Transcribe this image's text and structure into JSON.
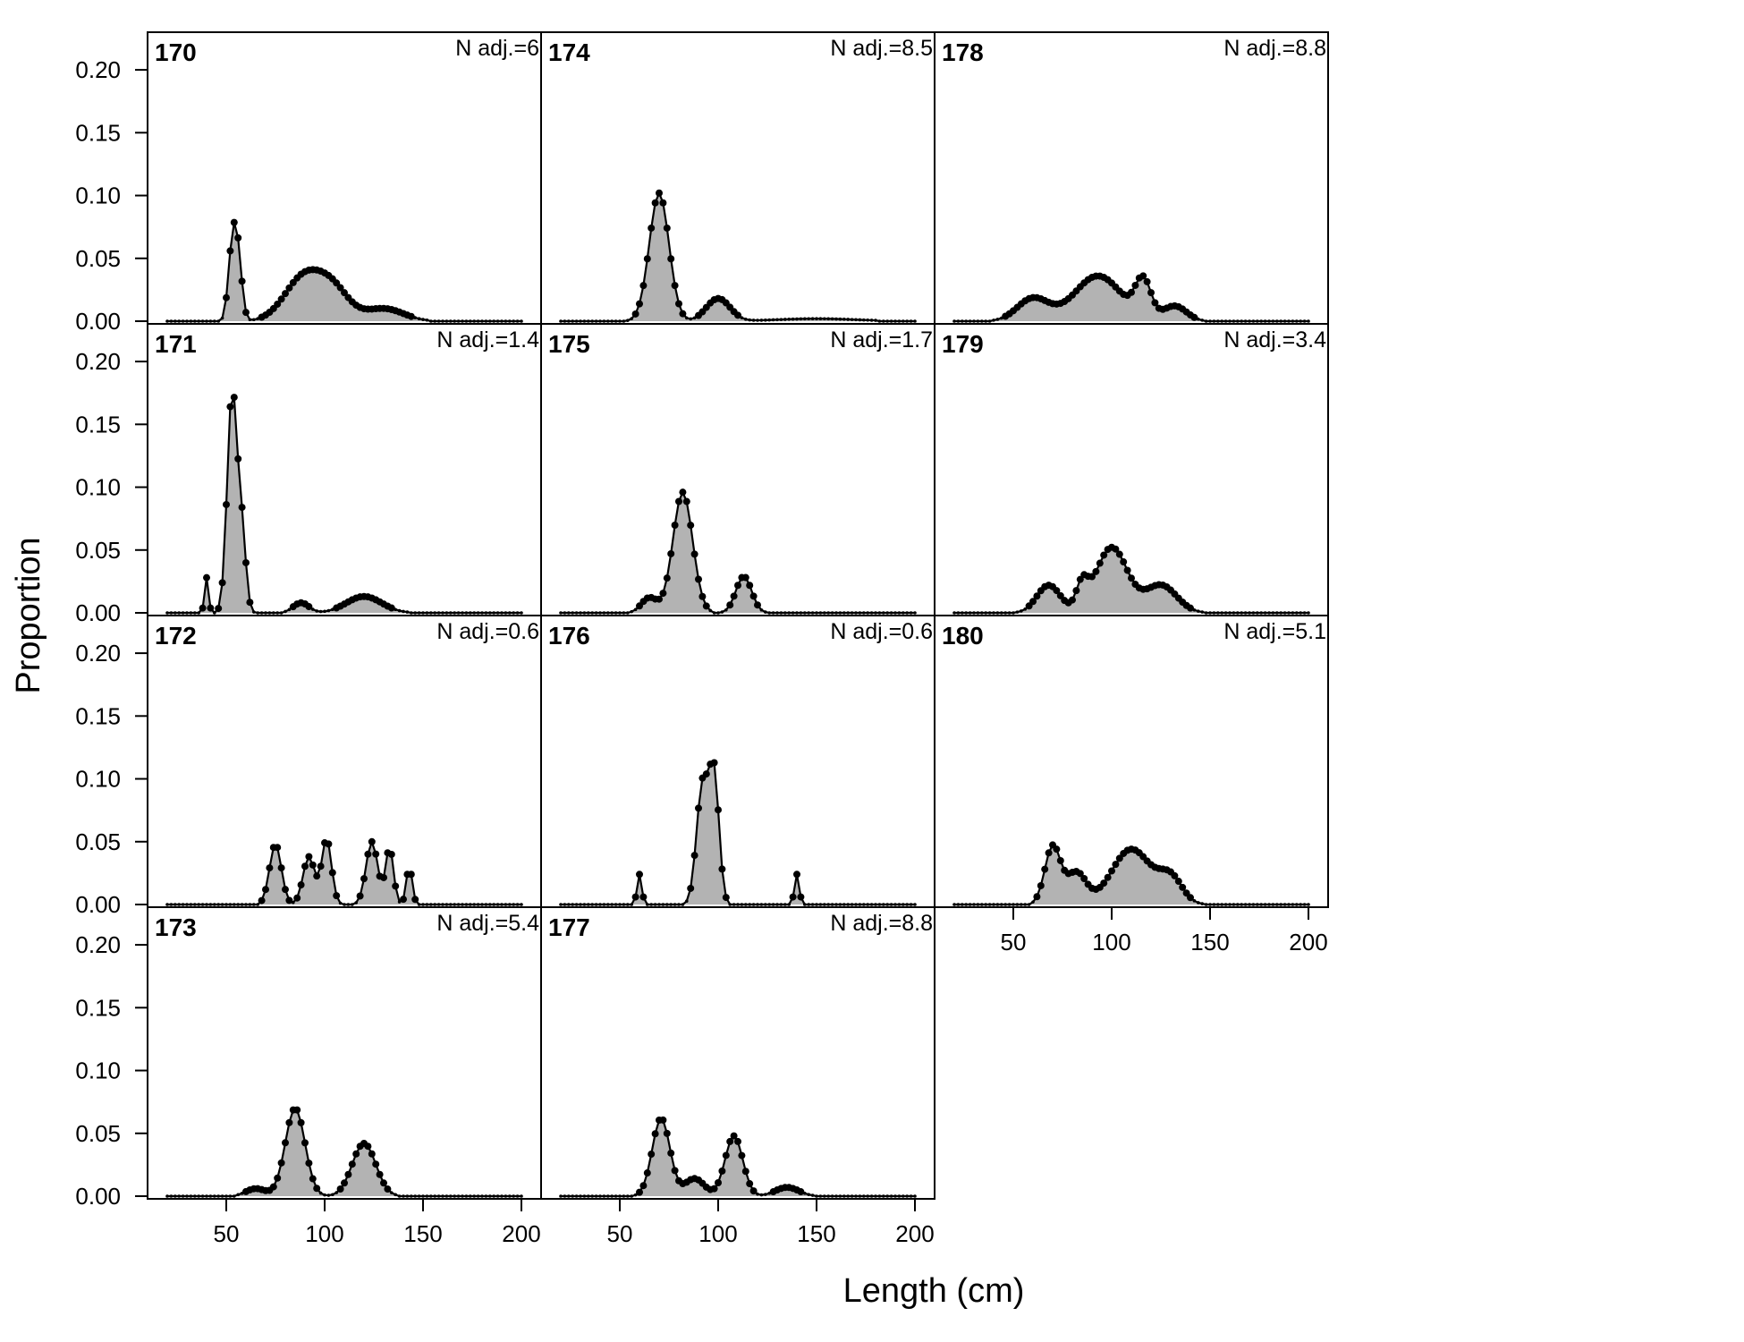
{
  "chart_data": {
    "type": "area",
    "xlabel": "Length (cm)",
    "ylabel": "Proportion",
    "xlim": [
      10,
      210
    ],
    "ylim": [
      0,
      0.22
    ],
    "xticks": [
      50,
      100,
      150,
      200
    ],
    "yticks": [
      0.0,
      0.05,
      0.1,
      0.15,
      0.2
    ],
    "xtick_labels": [
      "50",
      "100",
      "150",
      "200"
    ],
    "ytick_labels": [
      "0.00",
      "0.05",
      "0.10",
      "0.15",
      "0.20"
    ],
    "grid": false,
    "colors": {
      "fill": "#b3b3b3",
      "line": "#000000"
    },
    "panels": [
      {
        "id": "170",
        "nadj_label": "N adj.=6",
        "peaks": [
          [
            53,
            0.056,
            2
          ],
          [
            56,
            0.048,
            2
          ],
          [
            90,
            0.036,
            10
          ],
          [
            105,
            0.02,
            8
          ],
          [
            130,
            0.01,
            10
          ]
        ]
      },
      {
        "id": "171",
        "nadj_label": "N adj.=1.4",
        "peaks": [
          [
            40,
            0.028,
            1
          ],
          [
            53,
            0.177,
            2.5
          ],
          [
            58,
            0.06,
            2
          ],
          [
            88,
            0.008,
            4
          ],
          [
            120,
            0.013,
            9
          ]
        ]
      },
      {
        "id": "172",
        "nadj_label": "N adj.=0.6",
        "peaks": [
          [
            75,
            0.048,
            3
          ],
          [
            92,
            0.038,
            3
          ],
          [
            101,
            0.052,
            2.5
          ],
          [
            124,
            0.05,
            3
          ],
          [
            133,
            0.045,
            2
          ],
          [
            143,
            0.03,
            1.5
          ]
        ]
      },
      {
        "id": "173",
        "nadj_label": "N adj.=5.4",
        "peaks": [
          [
            85,
            0.07,
            5
          ],
          [
            120,
            0.042,
            6
          ],
          [
            65,
            0.006,
            5
          ]
        ]
      },
      {
        "id": "174",
        "nadj_label": "N adj.=8.5",
        "peaks": [
          [
            70,
            0.102,
            5
          ],
          [
            100,
            0.018,
            6
          ],
          [
            150,
            0.002,
            20
          ]
        ]
      },
      {
        "id": "175",
        "nadj_label": "N adj.=1.7",
        "peaks": [
          [
            82,
            0.096,
            5
          ],
          [
            113,
            0.029,
            4
          ],
          [
            65,
            0.012,
            4
          ]
        ]
      },
      {
        "id": "176",
        "nadj_label": "N adj.=0.6",
        "peaks": [
          [
            60,
            0.024,
            1.2
          ],
          [
            92,
            0.095,
            3
          ],
          [
            98,
            0.1,
            2.5
          ],
          [
            140,
            0.024,
            1.2
          ]
        ]
      },
      {
        "id": "177",
        "nadj_label": "N adj.=8.8",
        "peaks": [
          [
            71,
            0.062,
            4.5
          ],
          [
            108,
            0.048,
            4.5
          ],
          [
            88,
            0.014,
            5
          ],
          [
            135,
            0.007,
            6
          ]
        ]
      },
      {
        "id": "178",
        "nadj_label": "N adj.=8.8",
        "peaks": [
          [
            60,
            0.018,
            8
          ],
          [
            93,
            0.036,
            12
          ],
          [
            116,
            0.03,
            4
          ],
          [
            132,
            0.012,
            6
          ]
        ]
      },
      {
        "id": "179",
        "nadj_label": "N adj.=3.4",
        "peaks": [
          [
            68,
            0.022,
            6
          ],
          [
            100,
            0.052,
            8
          ],
          [
            125,
            0.022,
            8
          ],
          [
            85,
            0.02,
            3
          ]
        ]
      },
      {
        "id": "180",
        "nadj_label": "N adj.=5.1",
        "peaks": [
          [
            70,
            0.046,
            4
          ],
          [
            82,
            0.025,
            5
          ],
          [
            110,
            0.044,
            10
          ],
          [
            130,
            0.02,
            6
          ]
        ]
      }
    ]
  }
}
